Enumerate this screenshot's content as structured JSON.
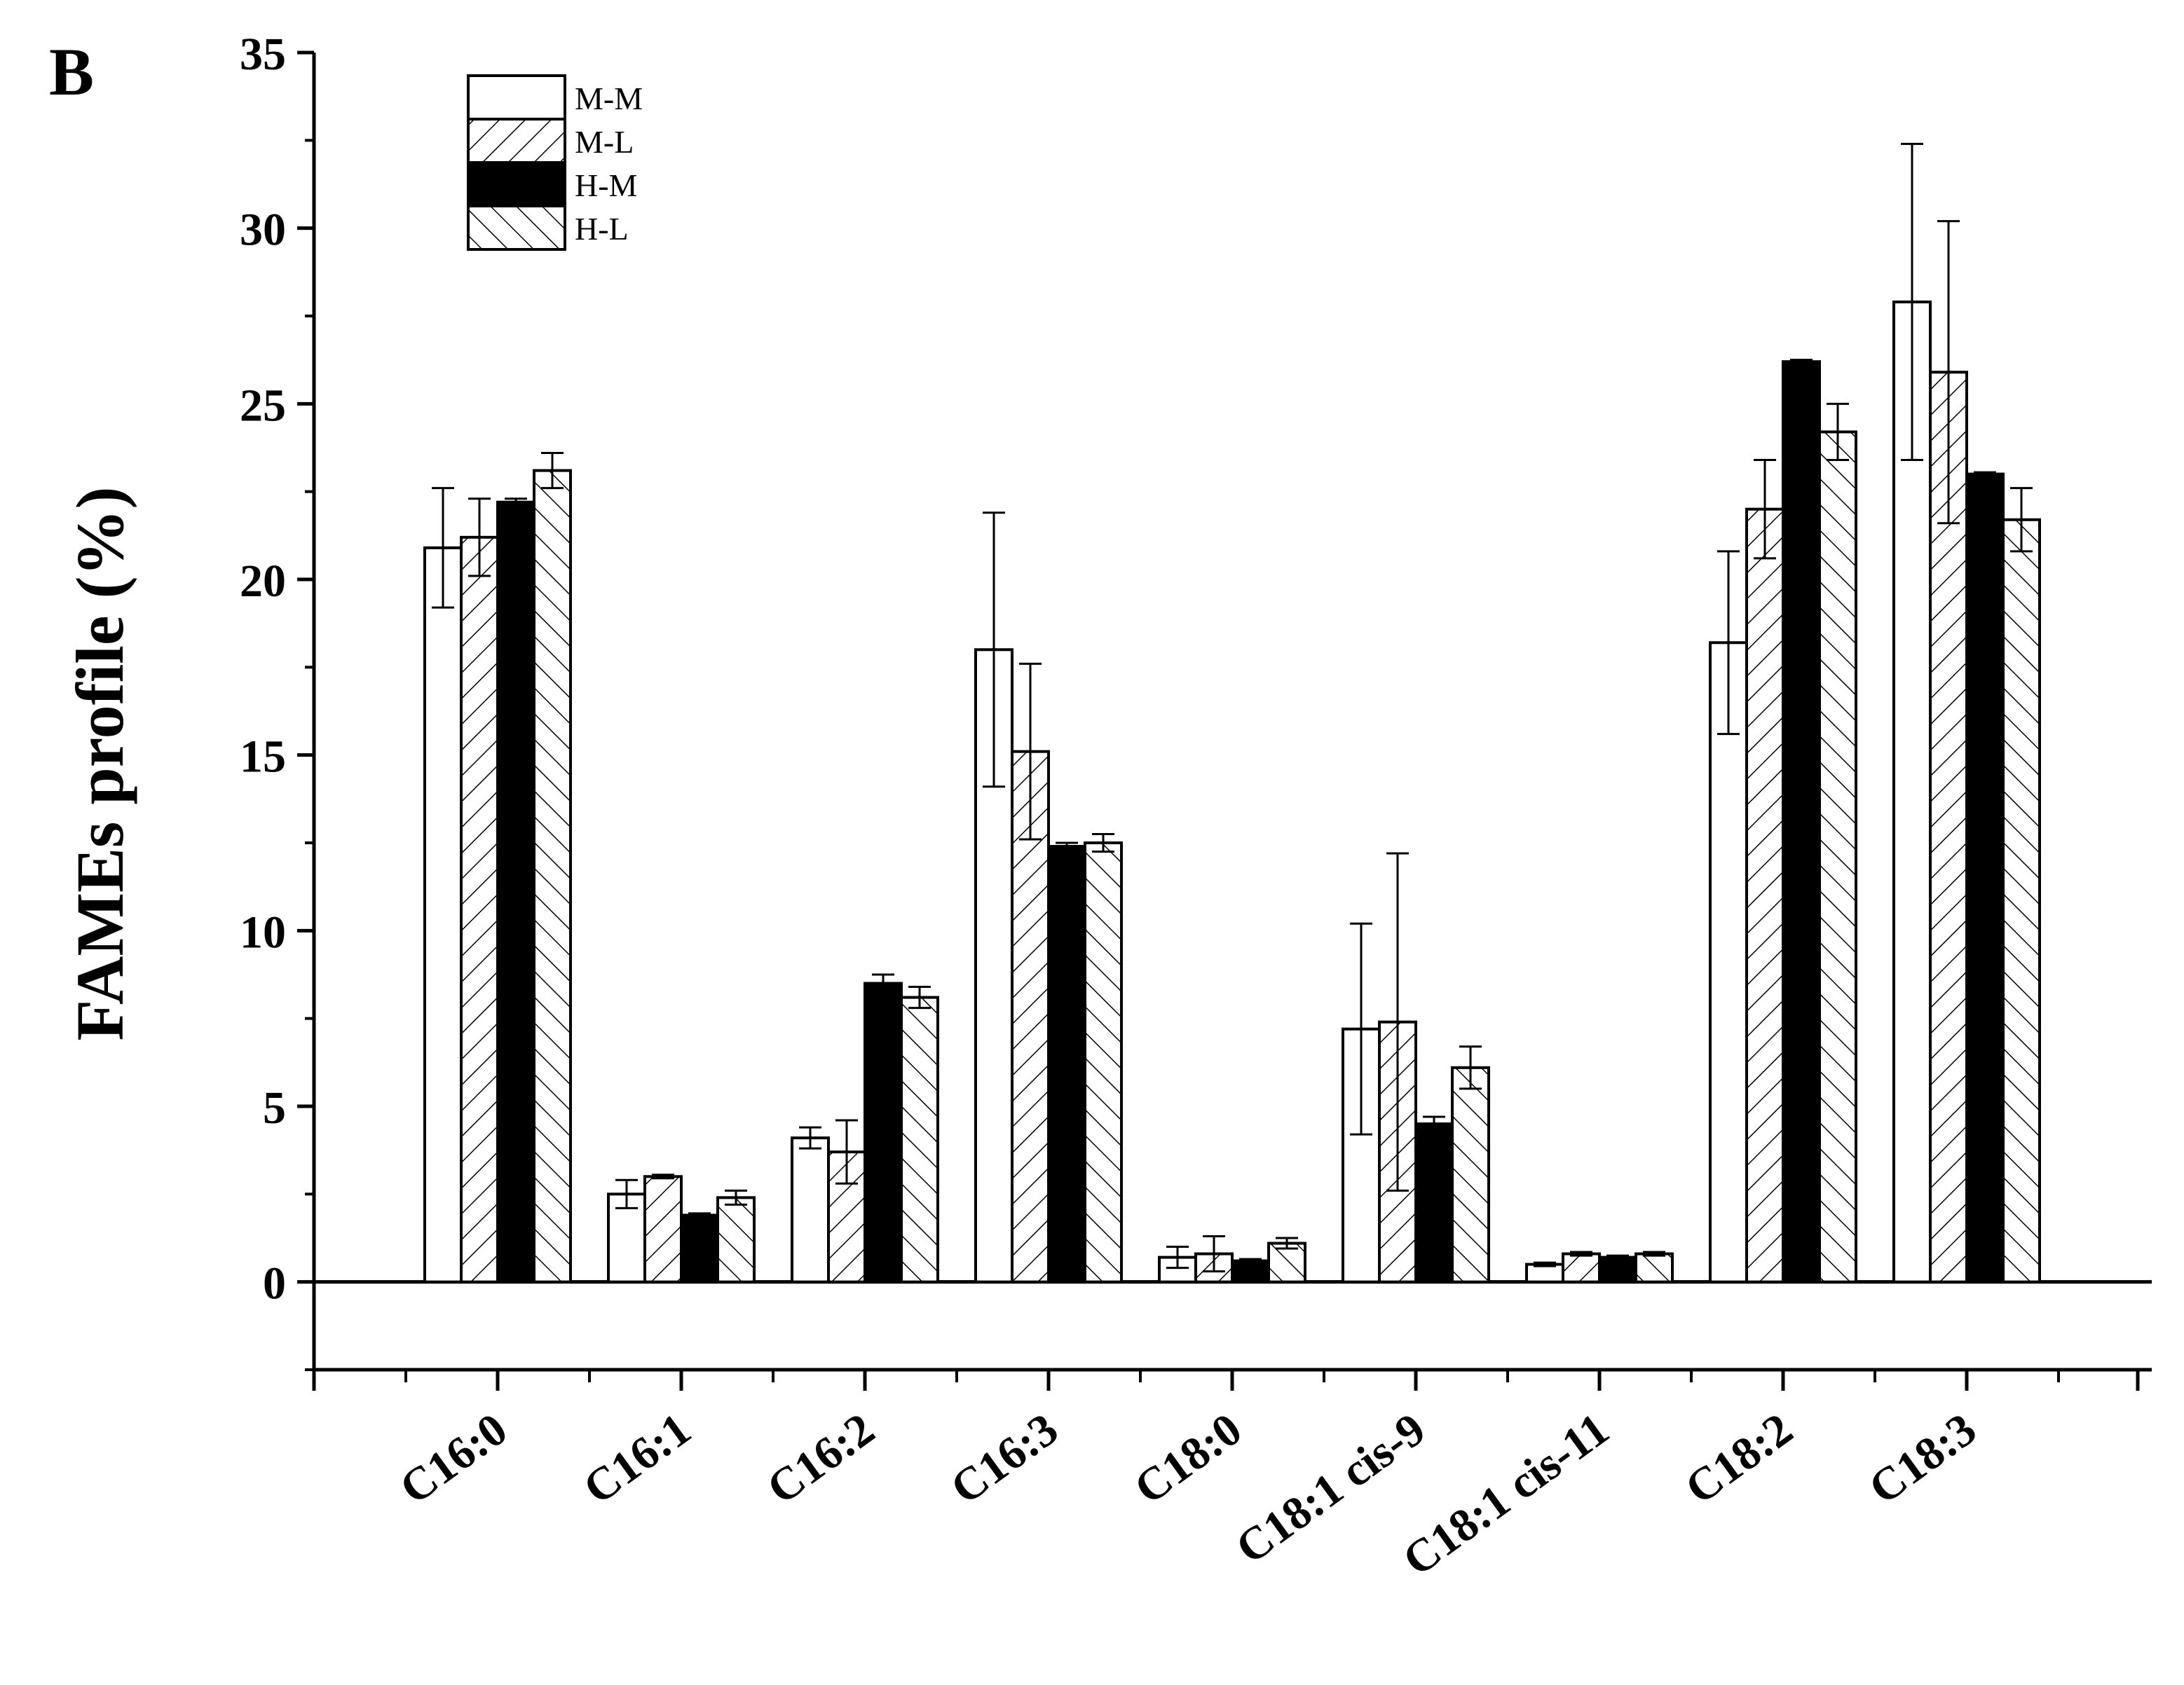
{
  "panel_label": "B",
  "colors": {
    "ink": "#000000",
    "background": "#ffffff",
    "hm_fill": "#000000"
  },
  "chart_data": {
    "type": "bar",
    "title": "",
    "xlabel": "",
    "ylabel": "FAMEs profile (%)",
    "ylim": [
      -2.5,
      35
    ],
    "yticks": [
      0,
      5,
      10,
      15,
      20,
      25,
      30,
      35
    ],
    "legend_position": "top-left",
    "categories": [
      "C16:0",
      "C16:1",
      "C16:2",
      "C16:3",
      "C18:0",
      "C18:1 cis-9",
      "C18:1 cis-11",
      "C18:2",
      "C18:3"
    ],
    "series": [
      {
        "name": "M-M",
        "pattern": "open",
        "values": [
          20.9,
          2.5,
          4.1,
          18.0,
          0.7,
          7.2,
          0.5,
          18.2,
          27.9
        ],
        "errors": [
          1.7,
          0.4,
          0.3,
          3.9,
          0.3,
          3.0,
          0.05,
          2.6,
          4.5
        ]
      },
      {
        "name": "M-L",
        "pattern": "forward-hatch",
        "values": [
          21.2,
          3.0,
          3.7,
          15.1,
          0.8,
          7.4,
          0.8,
          22.0,
          25.9
        ],
        "errors": [
          1.1,
          0.05,
          0.9,
          2.5,
          0.5,
          4.8,
          0.05,
          1.4,
          4.3
        ]
      },
      {
        "name": "H-M",
        "pattern": "solid",
        "values": [
          22.2,
          1.9,
          8.5,
          12.4,
          0.6,
          4.5,
          0.7,
          26.2,
          23.0
        ],
        "errors": [
          0.1,
          0.05,
          0.25,
          0.1,
          0.05,
          0.2,
          0.05,
          0.05,
          0.05
        ]
      },
      {
        "name": "H-L",
        "pattern": "back-hatch",
        "values": [
          23.1,
          2.4,
          8.1,
          12.5,
          1.1,
          6.1,
          0.8,
          24.2,
          21.7
        ],
        "errors": [
          0.5,
          0.2,
          0.3,
          0.25,
          0.15,
          0.6,
          0.05,
          0.8,
          0.9
        ]
      }
    ]
  }
}
